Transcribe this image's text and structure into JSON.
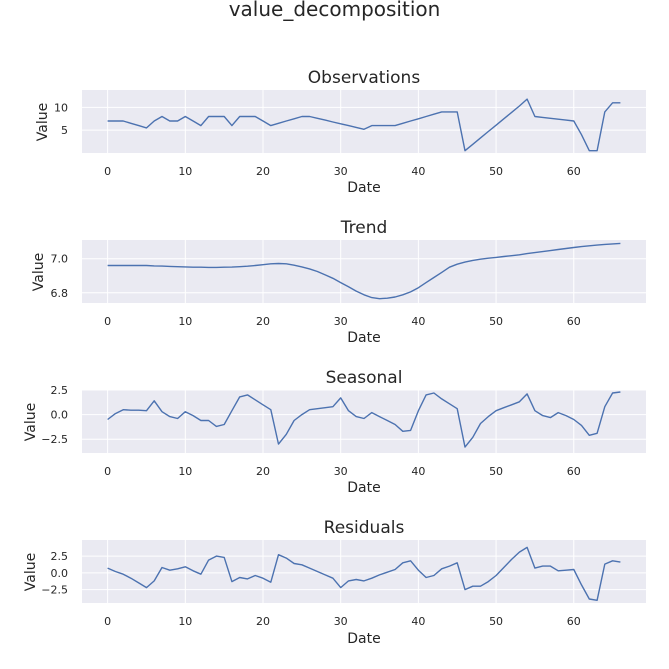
{
  "figure_title": "value_decomposition",
  "chart_data": [
    {
      "type": "line",
      "title": "Observations",
      "xlabel": "Date",
      "ylabel": "Value",
      "xlim": [
        -3.3,
        69.3
      ],
      "ylim": [
        0,
        13.8
      ],
      "xticks": [
        0,
        10,
        20,
        30,
        40,
        50,
        60
      ],
      "yticks": [
        5,
        10
      ],
      "grid": true,
      "series": [
        {
          "color": "#4c72b0",
          "x": [
            0,
            1,
            2,
            3,
            4,
            5,
            6,
            7,
            8,
            9,
            10,
            11,
            12,
            13,
            14,
            15,
            16,
            17,
            18,
            19,
            20,
            21,
            22,
            23,
            24,
            25,
            26,
            27,
            28,
            29,
            30,
            31,
            32,
            33,
            34,
            35,
            36,
            37,
            38,
            39,
            40,
            41,
            42,
            43,
            44,
            45,
            46,
            47,
            48,
            49,
            50,
            51,
            52,
            53,
            54,
            55,
            56,
            57,
            58,
            59,
            60,
            61,
            62,
            63,
            64,
            65,
            66
          ],
          "y": [
            7,
            7,
            7,
            6.5,
            6,
            5.5,
            7,
            8,
            7,
            7,
            8,
            7,
            6,
            8,
            8,
            8,
            6,
            8,
            8,
            8,
            7,
            6,
            6.5,
            7,
            7.5,
            8,
            8,
            7.6,
            7.2,
            6.8,
            6.4,
            6,
            5.6,
            5.2,
            6,
            6,
            6,
            6,
            6.5,
            7,
            7.5,
            8,
            8.5,
            9,
            9,
            9,
            0.5,
            1.9,
            3.3,
            4.7,
            6.1,
            7.5,
            8.9,
            10.3,
            11.8,
            8,
            7.8,
            7.6,
            7.4,
            7.2,
            7,
            4,
            0.5,
            0.5,
            9,
            11,
            11
          ]
        }
      ]
    },
    {
      "type": "line",
      "title": "Trend",
      "xlabel": "Date",
      "ylabel": "Value",
      "xlim": [
        -3.3,
        69.3
      ],
      "ylim": [
        6.74,
        7.11
      ],
      "xticks": [
        0,
        10,
        20,
        30,
        40,
        50,
        60
      ],
      "yticks": [
        6.8,
        7.0
      ],
      "grid": true,
      "series": [
        {
          "color": "#4c72b0",
          "x": [
            0,
            1,
            2,
            3,
            4,
            5,
            6,
            7,
            8,
            9,
            10,
            11,
            12,
            13,
            14,
            15,
            16,
            17,
            18,
            19,
            20,
            21,
            22,
            23,
            24,
            25,
            26,
            27,
            28,
            29,
            30,
            31,
            32,
            33,
            34,
            35,
            36,
            37,
            38,
            39,
            40,
            41,
            42,
            43,
            44,
            45,
            46,
            47,
            48,
            49,
            50,
            51,
            52,
            53,
            54,
            55,
            56,
            57,
            58,
            59,
            60,
            61,
            62,
            63,
            64,
            65,
            66
          ],
          "y": [
            6.96,
            6.96,
            6.96,
            6.96,
            6.96,
            6.96,
            6.958,
            6.957,
            6.955,
            6.953,
            6.952,
            6.95,
            6.95,
            6.949,
            6.949,
            6.95,
            6.951,
            6.953,
            6.956,
            6.96,
            6.965,
            6.97,
            6.972,
            6.97,
            6.962,
            6.952,
            6.94,
            6.925,
            6.905,
            6.885,
            6.86,
            6.835,
            6.81,
            6.788,
            6.772,
            6.765,
            6.768,
            6.775,
            6.788,
            6.805,
            6.83,
            6.86,
            6.89,
            6.92,
            6.95,
            6.968,
            6.98,
            6.99,
            6.997,
            7.003,
            7.008,
            7.013,
            7.018,
            7.023,
            7.03,
            7.036,
            7.042,
            7.048,
            7.054,
            7.06,
            7.066,
            7.071,
            7.076,
            7.08,
            7.084,
            7.087,
            7.09
          ]
        }
      ]
    },
    {
      "type": "line",
      "title": "Seasonal",
      "xlabel": "Date",
      "ylabel": "Value",
      "xlim": [
        -3.3,
        69.3
      ],
      "ylim": [
        -3.9,
        2.5
      ],
      "xticks": [
        0,
        10,
        20,
        30,
        40,
        50,
        60
      ],
      "yticks": [
        -2.5,
        0.0,
        2.5
      ],
      "grid": true,
      "series": [
        {
          "color": "#4c72b0",
          "x": [
            0,
            1,
            2,
            3,
            4,
            5,
            6,
            7,
            8,
            9,
            10,
            11,
            12,
            13,
            14,
            15,
            16,
            17,
            18,
            19,
            20,
            21,
            22,
            23,
            24,
            25,
            26,
            27,
            28,
            29,
            30,
            31,
            32,
            33,
            34,
            35,
            36,
            37,
            38,
            39,
            40,
            41,
            42,
            43,
            44,
            45,
            46,
            47,
            48,
            49,
            50,
            51,
            52,
            53,
            54,
            55,
            56,
            57,
            58,
            59,
            60,
            61,
            62,
            63,
            64,
            65,
            66
          ],
          "y": [
            -0.5,
            0.1,
            0.5,
            0.45,
            0.45,
            0.4,
            1.4,
            0.3,
            -0.2,
            -0.4,
            0.3,
            -0.1,
            -0.6,
            -0.6,
            -1.2,
            -1.0,
            0.4,
            1.8,
            2.0,
            1.5,
            1.0,
            0.5,
            -3.0,
            -2.0,
            -0.6,
            0.0,
            0.5,
            0.6,
            0.7,
            0.8,
            1.7,
            0.4,
            -0.2,
            -0.4,
            0.2,
            -0.2,
            -0.6,
            -1.0,
            -1.7,
            -1.6,
            0.4,
            2.0,
            2.2,
            1.6,
            1.1,
            0.6,
            -3.3,
            -2.3,
            -0.9,
            -0.2,
            0.4,
            0.7,
            1.0,
            1.3,
            2.1,
            0.4,
            -0.1,
            -0.3,
            0.2,
            -0.1,
            -0.5,
            -1.1,
            -2.1,
            -1.9,
            0.8,
            2.2,
            2.3
          ]
        }
      ]
    },
    {
      "type": "line",
      "title": "Residuals",
      "xlabel": "Date",
      "ylabel": "Value",
      "xlim": [
        -3.3,
        69.3
      ],
      "ylim": [
        -4.5,
        4.9
      ],
      "xticks": [
        0,
        10,
        20,
        30,
        40,
        50,
        60
      ],
      "yticks": [
        -2.5,
        0.0,
        2.5
      ],
      "grid": true,
      "series": [
        {
          "color": "#4c72b0",
          "x": [
            0,
            1,
            2,
            3,
            4,
            5,
            6,
            7,
            8,
            9,
            10,
            11,
            12,
            13,
            14,
            15,
            16,
            17,
            18,
            19,
            20,
            21,
            22,
            23,
            24,
            25,
            26,
            27,
            28,
            29,
            30,
            31,
            32,
            33,
            34,
            35,
            36,
            37,
            38,
            39,
            40,
            41,
            42,
            43,
            44,
            45,
            46,
            47,
            48,
            49,
            50,
            51,
            52,
            53,
            54,
            55,
            56,
            57,
            58,
            59,
            60,
            61,
            62,
            63,
            64,
            65,
            66
          ],
          "y": [
            0.7,
            0.2,
            -0.2,
            -0.8,
            -1.5,
            -2.2,
            -1.2,
            0.8,
            0.4,
            0.6,
            0.9,
            0.3,
            -0.2,
            1.9,
            2.5,
            2.3,
            -1.3,
            -0.7,
            -0.9,
            -0.4,
            -0.8,
            -1.4,
            2.7,
            2.2,
            1.4,
            1.2,
            0.7,
            0.2,
            -0.3,
            -0.8,
            -2.2,
            -1.2,
            -1.0,
            -1.2,
            -0.8,
            -0.3,
            0.1,
            0.5,
            1.5,
            1.8,
            0.4,
            -0.7,
            -0.4,
            0.6,
            1.0,
            1.5,
            -2.5,
            -2.0,
            -2.0,
            -1.3,
            -0.4,
            0.8,
            2.0,
            3.1,
            3.8,
            0.7,
            1.0,
            1.0,
            0.3,
            0.4,
            0.5,
            -1.8,
            -3.9,
            -4.1,
            1.3,
            1.8,
            1.6
          ]
        }
      ]
    }
  ]
}
